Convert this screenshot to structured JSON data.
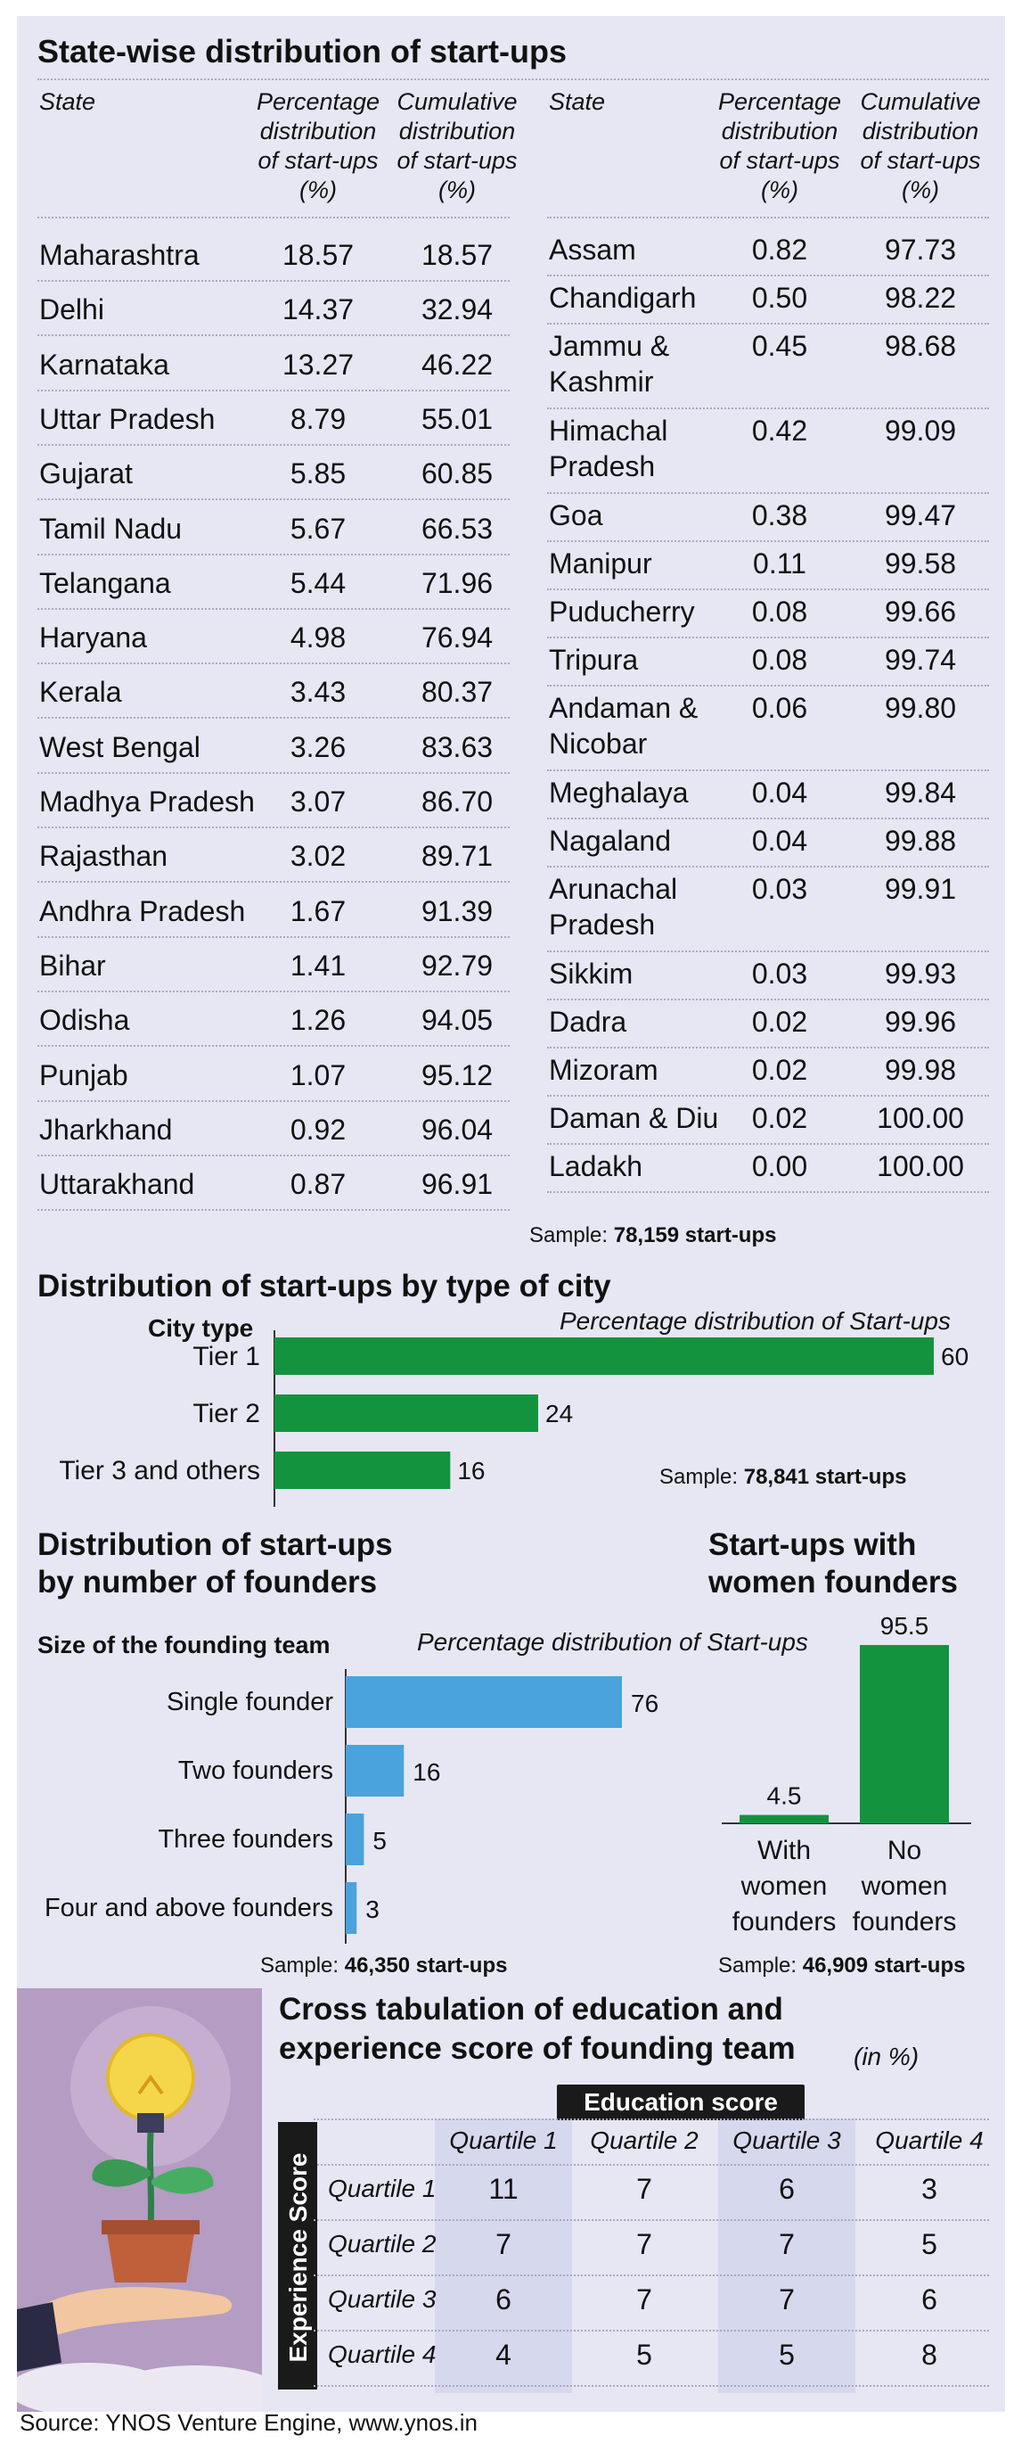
{
  "colors": {
    "panel": "#e6e7f3",
    "green": "#14933f",
    "blue": "#4aa3dc",
    "ct_shade": "#d6d8ee",
    "dark_badge": "#1a1a1a"
  },
  "state_table": {
    "title": "State-wise distribution of start-ups",
    "headers": {
      "state": "State",
      "pct": [
        "Percentage",
        "distribution",
        "of start-ups",
        "(%)"
      ],
      "cum": [
        "Cumulative",
        "distribution",
        "of start-ups",
        "(%)"
      ]
    },
    "left_rows": [
      [
        "Maharashtra",
        "18.57",
        "18.57"
      ],
      [
        "Delhi",
        "14.37",
        "32.94"
      ],
      [
        "Karnataka",
        "13.27",
        "46.22"
      ],
      [
        "Uttar Pradesh",
        "8.79",
        "55.01"
      ],
      [
        "Gujarat",
        "5.85",
        "60.85"
      ],
      [
        "Tamil Nadu",
        "5.67",
        "66.53"
      ],
      [
        "Telangana",
        "5.44",
        "71.96"
      ],
      [
        "Haryana",
        "4.98",
        "76.94"
      ],
      [
        "Kerala",
        "3.43",
        "80.37"
      ],
      [
        "West Bengal",
        "3.26",
        "83.63"
      ],
      [
        "Madhya Pradesh",
        "3.07",
        "86.70"
      ],
      [
        "Rajasthan",
        "3.02",
        "89.71"
      ],
      [
        "Andhra Pradesh",
        "1.67",
        "91.39"
      ],
      [
        "Bihar",
        "1.41",
        "92.79"
      ],
      [
        "Odisha",
        "1.26",
        "94.05"
      ],
      [
        "Punjab",
        "1.07",
        "95.12"
      ],
      [
        "Jharkhand",
        "0.92",
        "96.04"
      ],
      [
        "Uttarakhand",
        "0.87",
        "96.91"
      ]
    ],
    "right_rows": [
      [
        [
          "Assam"
        ],
        "0.82",
        "97.73"
      ],
      [
        [
          "Chandigarh"
        ],
        "0.50",
        "98.22"
      ],
      [
        [
          "Jammu &",
          "Kashmir"
        ],
        "0.45",
        "98.68"
      ],
      [
        [
          "Himachal",
          "Pradesh"
        ],
        "0.42",
        "99.09"
      ],
      [
        [
          "Goa"
        ],
        "0.38",
        "99.47"
      ],
      [
        [
          "Manipur"
        ],
        "0.11",
        "99.58"
      ],
      [
        [
          "Puducherry"
        ],
        "0.08",
        "99.66"
      ],
      [
        [
          "Tripura"
        ],
        "0.08",
        "99.74"
      ],
      [
        [
          "Andaman &",
          "Nicobar"
        ],
        "0.06",
        "99.80"
      ],
      [
        [
          "Meghalaya"
        ],
        "0.04",
        "99.84"
      ],
      [
        [
          "Nagaland"
        ],
        "0.04",
        "99.88"
      ],
      [
        [
          "Arunachal",
          "Pradesh"
        ],
        "0.03",
        "99.91"
      ],
      [
        [
          "Sikkim"
        ],
        "0.03",
        "99.93"
      ],
      [
        [
          "Dadra"
        ],
        "0.02",
        "99.96"
      ],
      [
        [
          "Mizoram"
        ],
        "0.02",
        "99.98"
      ],
      [
        [
          "Daman & Diu"
        ],
        "0.02",
        "100.00"
      ],
      [
        [
          "Ladakh"
        ],
        "0.00",
        "100.00"
      ]
    ],
    "sample_label": "Sample: ",
    "sample_value": "78,159 start-ups"
  },
  "city_chart": {
    "title": "Distribution of start-ups by type of city",
    "axis_title": "City type",
    "subtitle": "Percentage distribution of Start-ups",
    "sample_label": "Sample: ",
    "sample_value": "78,841 start-ups"
  },
  "founders_chart": {
    "title_lines": [
      "Distribution of start-ups",
      "by number of founders"
    ],
    "axis_title": "Size of the founding team",
    "subtitle": "Percentage distribution of Start-ups",
    "sample_label": "Sample: ",
    "sample_value": "46,350 start-ups"
  },
  "women_chart": {
    "title_lines": [
      "Start-ups with",
      "women founders"
    ],
    "sample_label": "Sample: ",
    "sample_value": "46,909 start-ups"
  },
  "cross_tab": {
    "title_lines": [
      "Cross tabulation of education and",
      "experience score of founding team"
    ],
    "unit": "(in %)",
    "col_header": "Education score",
    "row_header": "Experience Score",
    "columns": [
      "Quartile 1",
      "Quartile 2",
      "Quartile 3",
      "Quartile 4"
    ],
    "rows": [
      {
        "label": "Quartile 1",
        "values": [
          11,
          7,
          6,
          3
        ]
      },
      {
        "label": "Quartile 2",
        "values": [
          7,
          7,
          7,
          5
        ]
      },
      {
        "label": "Quartile 3",
        "values": [
          6,
          7,
          7,
          6
        ]
      },
      {
        "label": "Quartile 4",
        "values": [
          4,
          5,
          5,
          8
        ]
      }
    ]
  },
  "source": "Source: YNOS Venture Engine, www.ynos.in",
  "chart_data": [
    {
      "type": "bar",
      "orientation": "horizontal",
      "title": "Distribution of start-ups by type of city",
      "ylabel": "City type",
      "xlabel": "Percentage distribution of Start-ups",
      "categories": [
        "Tier 1",
        "Tier 2",
        "Tier 3 and others"
      ],
      "values": [
        60,
        24,
        16
      ],
      "xlim": [
        0,
        60
      ]
    },
    {
      "type": "bar",
      "orientation": "horizontal",
      "title": "Distribution of start-ups by number of founders",
      "ylabel": "Size of the founding team",
      "xlabel": "Percentage distribution of Start-ups",
      "categories": [
        "Single founder",
        "Two founders",
        "Three founders",
        "Four and above founders"
      ],
      "values": [
        76,
        16,
        5,
        3
      ],
      "xlim": [
        0,
        76
      ]
    },
    {
      "type": "bar",
      "orientation": "vertical",
      "title": "Start-ups with women founders",
      "categories": [
        "With women founders",
        "No women founders"
      ],
      "values": [
        4.5,
        95.5
      ],
      "ylim": [
        0,
        95.5
      ]
    }
  ]
}
